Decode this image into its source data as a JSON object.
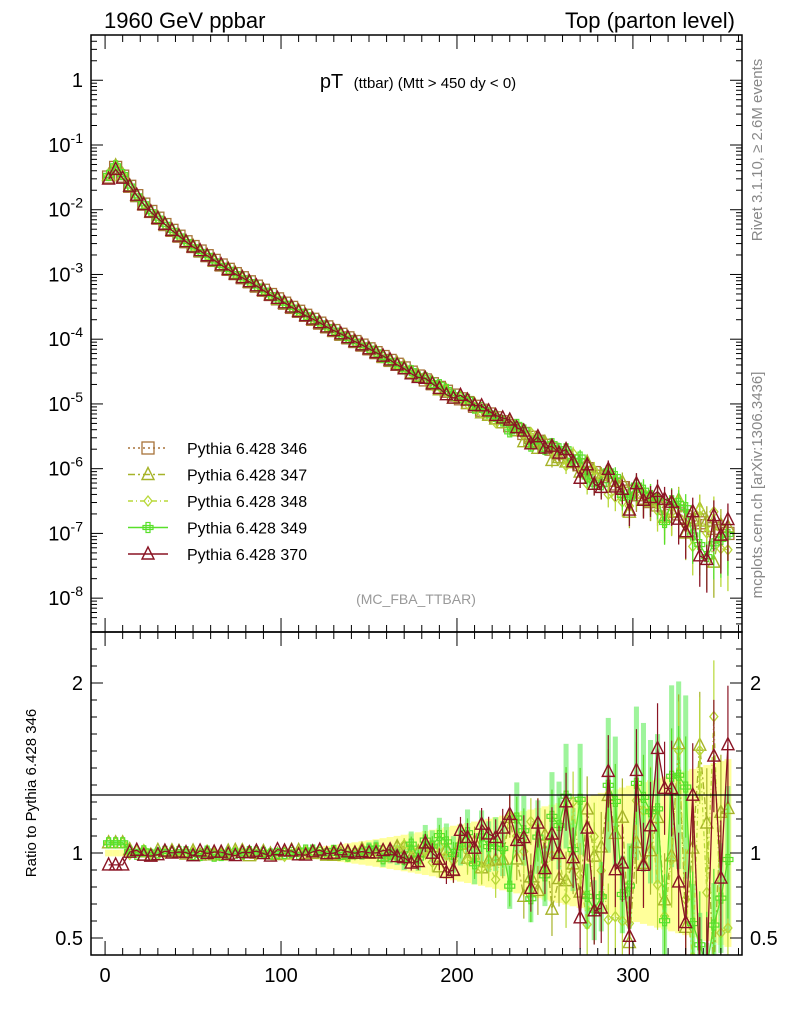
{
  "header": {
    "left": "1960 GeV ppbar",
    "right": "Top (parton level)"
  },
  "side_labels": {
    "rivet": "Rivet 3.1.10, ≥ 2.6M events",
    "mcplots": "mcplots.cern.ch [arXiv:1306.3436]"
  },
  "analysis_tag": "(MC_FBA_TTBAR)",
  "plot_title": {
    "main": "pT",
    "sub": "(ttbar) (Mtt > 450 dy < 0)"
  },
  "ratio_ylabel": "Ratio to Pythia 6.428 346",
  "legend": [
    {
      "label": "Pythia 6.428 346",
      "color": "#a8733a",
      "marker": "square",
      "dash": "2,3"
    },
    {
      "label": "Pythia 6.428 347",
      "color": "#a6b329",
      "marker": "triangle",
      "dash": "7,3,2,3"
    },
    {
      "label": "Pythia 6.428 348",
      "color": "#b8d838",
      "marker": "diamond",
      "dash": "5,3,1,3"
    },
    {
      "label": "Pythia 6.428 349",
      "color": "#58e02a",
      "marker": "cross",
      "dash": ""
    },
    {
      "label": "Pythia 6.428 370",
      "color": "#8a1424",
      "marker": "triangle",
      "dash": ""
    }
  ],
  "chart_data": [
    {
      "type": "line",
      "panel": "main",
      "yscale": "log",
      "xlim": [
        -8,
        362
      ],
      "ylim": [
        3e-09,
        5
      ],
      "xticks": [
        0,
        100,
        200,
        300
      ],
      "yticks": [
        {
          "v": 1e-08,
          "label": "10^-8"
        },
        {
          "v": 1e-07,
          "label": "10^-7"
        },
        {
          "v": 1e-06,
          "label": "10^-6"
        },
        {
          "v": 1e-05,
          "label": "10^-5"
        },
        {
          "v": 0.0001,
          "label": "10^-4"
        },
        {
          "v": 0.001,
          "label": "10^-3"
        },
        {
          "v": 0.01,
          "label": "10^-2"
        },
        {
          "v": 0.1,
          "label": "10^-1"
        },
        {
          "v": 1,
          "label": "1"
        }
      ],
      "x": [
        2,
        6,
        10,
        14,
        18,
        22,
        26,
        30,
        34,
        38,
        42,
        46,
        50,
        54,
        58,
        62,
        66,
        70,
        74,
        78,
        82,
        86,
        90,
        94,
        98,
        102,
        106,
        110,
        114,
        118,
        122,
        126,
        130,
        134,
        138,
        142,
        146,
        150,
        154,
        158,
        162,
        166,
        170,
        174,
        178,
        182,
        186,
        190,
        194,
        198,
        202,
        206,
        210,
        214,
        218,
        222,
        226,
        230,
        234,
        238,
        242,
        246,
        250,
        254,
        258,
        262,
        266,
        270,
        274,
        278,
        282,
        286,
        290,
        294,
        298,
        302,
        306,
        310,
        314,
        318,
        322,
        326,
        330,
        334,
        338,
        342,
        346,
        350,
        354
      ],
      "reference": [
        0.032,
        0.045,
        0.033,
        0.023,
        0.0165,
        0.0122,
        0.0094,
        0.0074,
        0.0059,
        0.0048,
        0.0039,
        0.0032,
        0.0027,
        0.0023,
        0.00195,
        0.00165,
        0.0014,
        0.0012,
        0.00103,
        0.00089,
        0.00077,
        0.00066,
        0.00057,
        0.00049,
        0.00042,
        0.00036,
        0.00031,
        0.00027,
        0.000234,
        0.000203,
        0.000177,
        0.000155,
        0.000136,
        0.000119,
        0.000105,
        9.2e-05,
        8.1e-05,
        7.1e-05,
        6.2e-05,
        5.4e-05,
        4.7e-05,
        4.1e-05,
        3.6e-05,
        3.1e-05,
        2.7e-05,
        2.35e-05,
        2.05e-05,
        1.8e-05,
        1.57e-05,
        1.37e-05,
        1.2e-05,
        1.05e-05,
        9.2e-06,
        8e-06,
        7e-06,
        6.1e-06,
        5.3e-06,
        4.6e-06,
        4e-06,
        3.5e-06,
        3.05e-06,
        2.65e-06,
        2.3e-06,
        2e-06,
        1.75e-06,
        1.52e-06,
        1.32e-06,
        1.15e-06,
        1e-06,
        8.7e-07,
        7.6e-07,
        6.6e-07,
        5.8e-07,
        5.1e-07,
        4.5e-07,
        3.95e-07,
        3.5e-07,
        3.1e-07,
        2.75e-07,
        2.45e-07,
        2.2e-07,
        2e-07,
        1.8e-07,
        1.62e-07,
        1.46e-07,
        1.32e-07,
        1.2e-07,
        1.1e-07,
        1e-07
      ]
    },
    {
      "type": "line",
      "panel": "ratio",
      "ylim": [
        0.4,
        2.3
      ],
      "yticks": [
        0.5,
        1,
        2
      ],
      "xlabel": "",
      "ylabel": "Ratio to Pythia 6.428 346"
    }
  ]
}
